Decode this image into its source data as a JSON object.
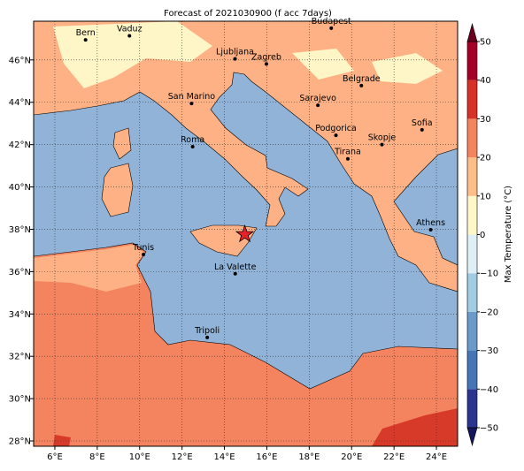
{
  "title": "Forecast of 2021030900 (f acc 7days)",
  "map": {
    "lon_range": [
      5,
      25
    ],
    "lat_range": [
      27.75,
      47.83
    ],
    "grid": true,
    "lon_ticks": [
      {
        "value": 6,
        "label": "6°E"
      },
      {
        "value": 8,
        "label": "8°E"
      },
      {
        "value": 10,
        "label": "10°E"
      },
      {
        "value": 12,
        "label": "12°E"
      },
      {
        "value": 14,
        "label": "14°E"
      },
      {
        "value": 16,
        "label": "16°E"
      },
      {
        "value": 18,
        "label": "18°E"
      },
      {
        "value": 20,
        "label": "20°E"
      },
      {
        "value": 22,
        "label": "22°E"
      },
      {
        "value": 24,
        "label": "24°E"
      }
    ],
    "lat_ticks": [
      {
        "value": 28,
        "label": "28°N"
      },
      {
        "value": 30,
        "label": "30°N"
      },
      {
        "value": 32,
        "label": "32°N"
      },
      {
        "value": 34,
        "label": "34°N"
      },
      {
        "value": 36,
        "label": "36°N"
      },
      {
        "value": 38,
        "label": "38°N"
      },
      {
        "value": 40,
        "label": "40°N"
      },
      {
        "value": 42,
        "label": "42°N"
      },
      {
        "value": 44,
        "label": "44°N"
      },
      {
        "value": 46,
        "label": "46°N"
      }
    ],
    "cities": [
      {
        "name": "Bern",
        "lon": 7.45,
        "lat": 46.95
      },
      {
        "name": "Vaduz",
        "lon": 9.52,
        "lat": 47.14
      },
      {
        "name": "Budapest",
        "lon": 19.04,
        "lat": 47.5
      },
      {
        "name": "Ljubljana",
        "lon": 14.5,
        "lat": 46.05
      },
      {
        "name": "Zagreb",
        "lon": 15.98,
        "lat": 45.81
      },
      {
        "name": "Belgrade",
        "lon": 20.46,
        "lat": 44.79
      },
      {
        "name": "Sarajevo",
        "lon": 18.41,
        "lat": 43.86
      },
      {
        "name": "San Marino",
        "lon": 12.45,
        "lat": 43.94
      },
      {
        "name": "Sofia",
        "lon": 23.32,
        "lat": 42.7
      },
      {
        "name": "Podgorica",
        "lon": 19.26,
        "lat": 42.44
      },
      {
        "name": "Skopje",
        "lon": 21.43,
        "lat": 42.0
      },
      {
        "name": "Roma",
        "lon": 12.5,
        "lat": 41.9
      },
      {
        "name": "Tirana",
        "lon": 19.82,
        "lat": 41.33
      },
      {
        "name": "Athens",
        "lon": 23.73,
        "lat": 37.98
      },
      {
        "name": "Tunis",
        "lon": 10.18,
        "lat": 36.81
      },
      {
        "name": "La Valette",
        "lon": 14.51,
        "lat": 35.9
      },
      {
        "name": "Tripoli",
        "lon": 13.19,
        "lat": 32.89
      }
    ],
    "star": {
      "lon": 14.96,
      "lat": 37.76,
      "color": "#e8202a"
    }
  },
  "colorbar": {
    "label": "Max Temperature (°C)",
    "ticks": [
      {
        "value": -50,
        "label": "−50"
      },
      {
        "value": -40,
        "label": "−40"
      },
      {
        "value": -30,
        "label": "−30"
      },
      {
        "value": -20,
        "label": "−20"
      },
      {
        "value": -10,
        "label": "−10"
      },
      0,
      10,
      20,
      30,
      40,
      50
    ],
    "colors": [
      "#2b3590",
      "#4575b4",
      "#6b9ac8",
      "#a3cbe2",
      "#def0f6",
      "#fff7c8",
      "#fdbe88",
      "#f4845e",
      "#d73027",
      "#a50026"
    ],
    "under_color": "#16165e",
    "over_color": "#6a001e"
  }
}
